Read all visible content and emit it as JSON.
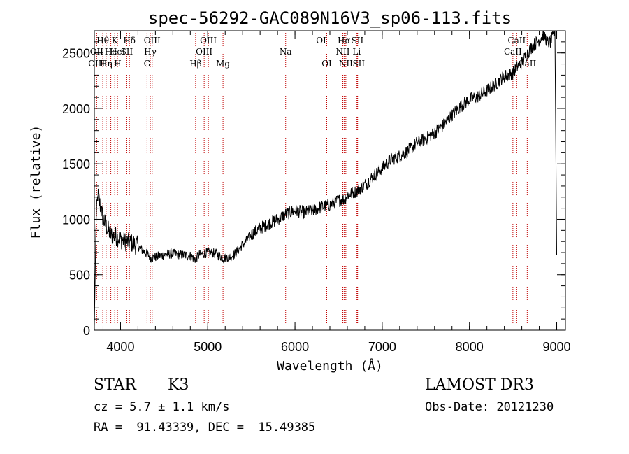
{
  "chart_data": {
    "type": "line",
    "title": "spec-56292-GAC089N16V3_sp06-113.fits",
    "xlabel": "Wavelength (Å)",
    "ylabel": "Flux (relative)",
    "xlim": [
      3700,
      9100
    ],
    "ylim": [
      0,
      2700
    ],
    "xticks": [
      4000,
      5000,
      6000,
      7000,
      8000,
      9000
    ],
    "yticks": [
      0,
      500,
      1000,
      1500,
      2000,
      2500
    ],
    "xminor_step": 200,
    "yminor_step": 100,
    "line_color": "#000000",
    "marker_color": "#c00000",
    "spectrum": {
      "name": "flux",
      "x": [
        3700,
        3720,
        3740,
        3760,
        3780,
        3800,
        3830,
        3860,
        3900,
        3950,
        4000,
        4050,
        4100,
        4150,
        4200,
        4250,
        4300,
        4350,
        4400,
        4500,
        4600,
        4700,
        4800,
        4860,
        4900,
        5000,
        5100,
        5180,
        5250,
        5300,
        5400,
        5500,
        5600,
        5700,
        5800,
        5900,
        6000,
        6100,
        6200,
        6300,
        6400,
        6500,
        6563,
        6600,
        6700,
        6800,
        6900,
        7000,
        7100,
        7200,
        7300,
        7400,
        7500,
        7600,
        7700,
        7800,
        7900,
        8000,
        8100,
        8200,
        8300,
        8400,
        8500,
        8550,
        8600,
        8650,
        8700,
        8750,
        8800,
        8850,
        8900,
        8930,
        8960,
        8980,
        9000
      ],
      "y": [
        40,
        1000,
        1220,
        1150,
        1080,
        1000,
        950,
        900,
        850,
        850,
        820,
        800,
        790,
        780,
        760,
        720,
        690,
        650,
        660,
        680,
        690,
        680,
        670,
        640,
        680,
        700,
        690,
        650,
        660,
        680,
        770,
        860,
        920,
        960,
        1000,
        1050,
        1080,
        1060,
        1080,
        1110,
        1130,
        1170,
        1180,
        1220,
        1250,
        1310,
        1390,
        1460,
        1540,
        1570,
        1620,
        1690,
        1730,
        1780,
        1850,
        1940,
        2020,
        2080,
        2110,
        2160,
        2220,
        2290,
        2320,
        2380,
        2410,
        2480,
        2540,
        2580,
        2620,
        2670,
        2590,
        2600,
        2650,
        2700,
        680
      ]
    },
    "line_markers": [
      {
        "label": "Hθ",
        "x": 3797,
        "row": 1
      },
      {
        "label": "OII",
        "x": 3727,
        "row": 2
      },
      {
        "label": "OIII",
        "x": 3726,
        "row": 3
      },
      {
        "label": "He",
        "x": 3889,
        "row": 2
      },
      {
        "label": "Hη",
        "x": 3835,
        "row": 3
      },
      {
        "label": "K",
        "x": 3934,
        "row": 1
      },
      {
        "label": "HeI",
        "x": 3965,
        "row": 2
      },
      {
        "label": "H",
        "x": 3968,
        "row": 3
      },
      {
        "label": "Hδ",
        "x": 4102,
        "row": 1
      },
      {
        "label": "SII",
        "x": 4072,
        "row": 2
      },
      {
        "label": "OIII",
        "x": 4363,
        "row": 1
      },
      {
        "label": "Hγ",
        "x": 4341,
        "row": 2
      },
      {
        "label": "G",
        "x": 4304,
        "row": 3
      },
      {
        "label": "OIII",
        "x": 5007,
        "row": 1
      },
      {
        "label": "OIII",
        "x": 4959,
        "row": 2
      },
      {
        "label": "Hβ",
        "x": 4861,
        "row": 3
      },
      {
        "label": "Mg",
        "x": 5175,
        "row": 3
      },
      {
        "label": "Na",
        "x": 5893,
        "row": 2
      },
      {
        "label": "OI",
        "x": 6300,
        "row": 1
      },
      {
        "label": "OI",
        "x": 6364,
        "row": 3
      },
      {
        "label": "Hα",
        "x": 6563,
        "row": 1
      },
      {
        "label": "SII",
        "x": 6716,
        "row": 1
      },
      {
        "label": "NII",
        "x": 6548,
        "row": 2
      },
      {
        "label": "Li",
        "x": 6707,
        "row": 2
      },
      {
        "label": "NII",
        "x": 6583,
        "row": 3
      },
      {
        "label": "SII",
        "x": 6731,
        "row": 3
      },
      {
        "label": "CaII",
        "x": 8542,
        "row": 1
      },
      {
        "label": "CaII",
        "x": 8498,
        "row": 2
      },
      {
        "label": "CaII",
        "x": 8662,
        "row": 3
      }
    ]
  },
  "info": {
    "class_label": "STAR",
    "subclass_label": "K3",
    "survey_label": "LAMOST DR3",
    "redshift_line": "cz = 5.7 ± 1.1 km/s",
    "obs_date_line": "Obs-Date: 20121230",
    "coords_line": "RA =  91.43339, DEC =  15.49385"
  }
}
